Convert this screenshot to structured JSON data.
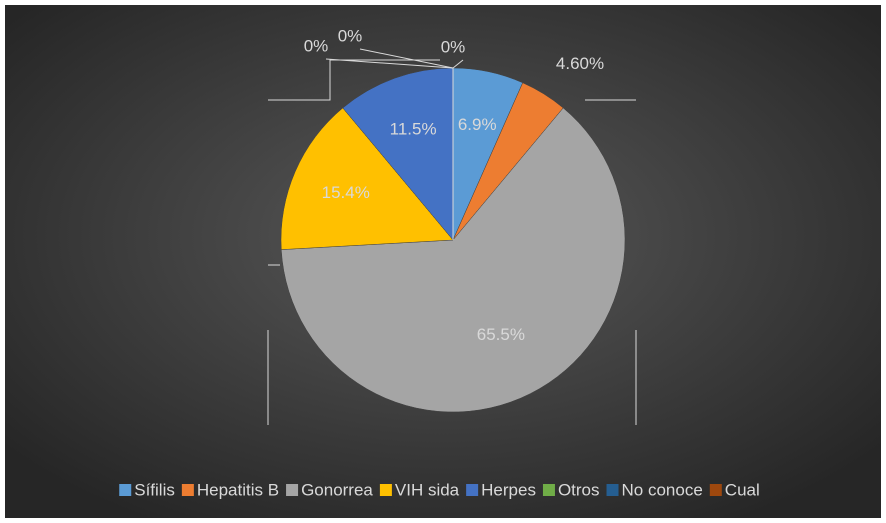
{
  "chart_data": {
    "type": "pie",
    "categories": [
      "Sífilis",
      "Hepatitis B",
      "Gonorrea",
      "VIH sida",
      "Herpes",
      "Otros",
      "No conoce",
      "Cual"
    ],
    "values": [
      6.9,
      4.6,
      65.5,
      15.4,
      11.5,
      0,
      0,
      0
    ],
    "value_labels": [
      "6.9%",
      "4.60%",
      "65.5%",
      "15.4%",
      "11.5%",
      "0%",
      "0%",
      "0%"
    ],
    "colors": [
      "#5b9bd5",
      "#ed7d31",
      "#a5a5a5",
      "#ffc000",
      "#4472c4",
      "#70ad47",
      "#255e91",
      "#9e480e"
    ],
    "legend": "bottom"
  }
}
